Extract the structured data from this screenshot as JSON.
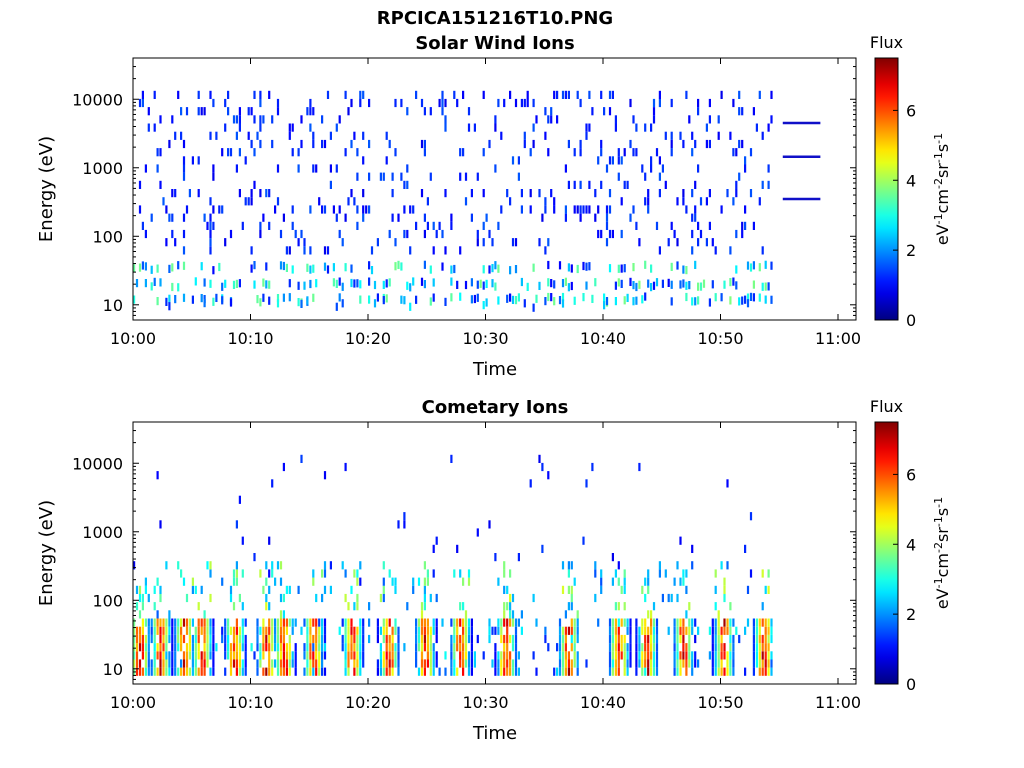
{
  "figure": {
    "title": "RPCICA151216T10.PNG"
  },
  "chart_data": [
    {
      "type": "heatmap",
      "title": "Solar Wind Ions",
      "xlabel": "Time",
      "ylabel": "Energy (eV)",
      "x_ticks": [
        "10:00",
        "10:10",
        "10:20",
        "10:30",
        "10:40",
        "10:50",
        "11:00"
      ],
      "x_range_minutes": [
        0,
        60
      ],
      "y_ticks": [
        {
          "value": 10,
          "label": "10"
        },
        {
          "value": 100,
          "label": "100"
        },
        {
          "value": 1000,
          "label": "1000"
        },
        {
          "value": 10000,
          "label": "10000"
        }
      ],
      "y_scale": "log",
      "y_range": [
        6,
        40000
      ],
      "colorbar": {
        "title": "Flux",
        "label": "eV-1cm-2sr-1s-1",
        "range": [
          0,
          7.5
        ],
        "ticks": [
          0,
          2,
          4,
          6
        ],
        "colormap": "jet"
      },
      "data_end_minute": 54.5,
      "flux_level": "low",
      "low_energy_bands_eV": [
        12,
        20,
        35
      ],
      "trailing_lines_eV": [
        350,
        1450,
        4500
      ],
      "trailing_lines_minutes": [
        55.3,
        58.5
      ],
      "peak_flux": 3.8
    },
    {
      "type": "heatmap",
      "title": "Cometary Ions",
      "xlabel": "Time",
      "ylabel": "Energy (eV)",
      "x_ticks": [
        "10:00",
        "10:10",
        "10:20",
        "10:30",
        "10:40",
        "10:50",
        "11:00"
      ],
      "x_range_minutes": [
        0,
        60
      ],
      "y_ticks": [
        {
          "value": 10,
          "label": "10"
        },
        {
          "value": 100,
          "label": "100"
        },
        {
          "value": 1000,
          "label": "1000"
        },
        {
          "value": 10000,
          "label": "10000"
        }
      ],
      "y_scale": "log",
      "y_range": [
        6,
        40000
      ],
      "colorbar": {
        "title": "Flux",
        "label": "eV-1cm-2sr-1s-1",
        "range": [
          0,
          7.5
        ],
        "ticks": [
          0,
          2,
          4,
          6
        ],
        "colormap": "jet"
      },
      "data_end_minute": 54.5,
      "flux_level": "high",
      "burst_minutes": [
        0.5,
        2.3,
        4.3,
        5.8,
        8.6,
        11.3,
        12.8,
        15.3,
        18.6,
        21.7,
        24.8,
        27.8,
        31.7,
        37.0,
        41.3,
        43.7,
        46.8,
        50.2,
        53.6
      ],
      "burst_peak_eV": [
        20,
        35
      ],
      "peak_flux": 7.0
    }
  ]
}
